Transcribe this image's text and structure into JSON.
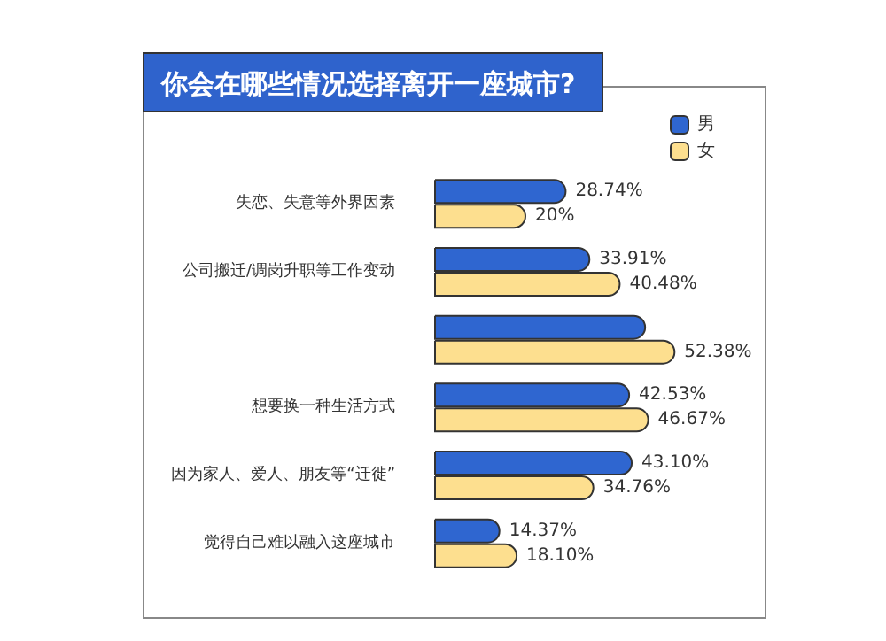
{
  "chart_data": {
    "type": "bar",
    "orientation": "horizontal",
    "title": "你会在哪些情况选择离开一座城市?",
    "categories": [
      "失恋、失意等外界因素",
      "公司搬迁/调岗升职等工作变动",
      null,
      "想要换一种生活方式",
      "因为家人、爱人、朋友等“迁徙”",
      "觉得自己难以融入这座城市"
    ],
    "series": [
      {
        "name": "男",
        "color": "#2f66d0",
        "values": [
          28.74,
          33.91,
          46,
          42.53,
          43.1,
          14.37
        ],
        "value_labels": [
          "28.74%",
          "33.91%",
          null,
          "42.53%",
          "43.10%",
          "14.37%"
        ]
      },
      {
        "name": "女",
        "color": "#fddf8f",
        "values": [
          20,
          40.48,
          52.38,
          46.67,
          34.76,
          18.1
        ],
        "value_labels": [
          "20%",
          "40.48%",
          "52.38%",
          "46.67%",
          "34.76%",
          "18.10%"
        ]
      }
    ],
    "legend": "top right"
  }
}
